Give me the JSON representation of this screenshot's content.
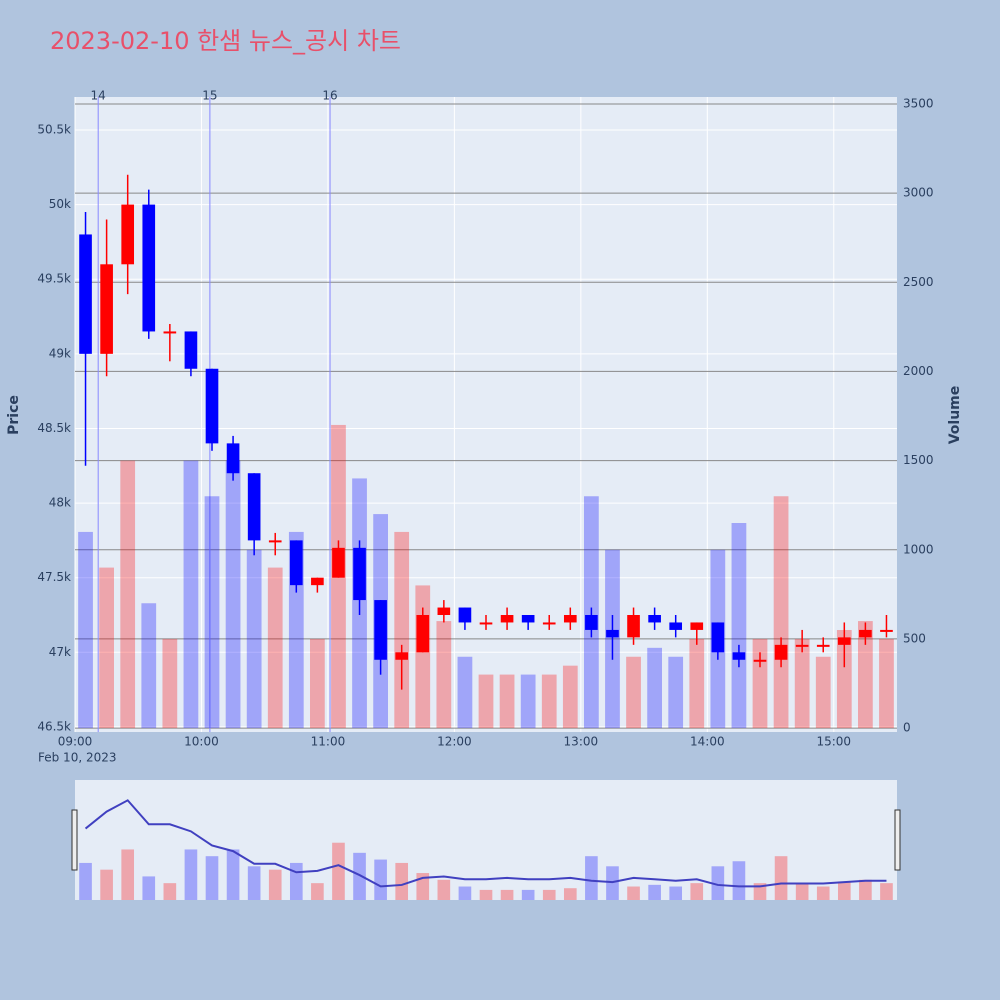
{
  "chart_data": {
    "type": "candlestick",
    "title": "2023-02-10 한샘 뉴스_공시 차트",
    "y_label": "Price",
    "y2_label": "Volume",
    "x_date_label": "Feb 10, 2023",
    "up_color": "#ff0000",
    "down_color": "#0000ff",
    "x": [
      "09:00",
      "09:10",
      "09:20",
      "09:30",
      "09:40",
      "09:50",
      "10:00",
      "10:10",
      "10:20",
      "10:30",
      "10:40",
      "10:50",
      "11:00",
      "11:10",
      "11:20",
      "11:30",
      "11:40",
      "11:50",
      "12:00",
      "12:10",
      "12:20",
      "12:30",
      "12:40",
      "12:50",
      "13:00",
      "13:10",
      "13:20",
      "13:30",
      "13:40",
      "13:50",
      "14:00",
      "14:10",
      "14:20",
      "14:30",
      "14:40",
      "14:50",
      "15:00",
      "15:10",
      "15:20"
    ],
    "open": [
      49800,
      49000,
      49600,
      50000,
      49150,
      49150,
      48900,
      48400,
      48200,
      47750,
      47750,
      47450,
      47500,
      47700,
      47350,
      46950,
      47000,
      47250,
      47300,
      47200,
      47200,
      47250,
      47200,
      47200,
      47250,
      47150,
      47100,
      47250,
      47200,
      47150,
      47200,
      47000,
      46950,
      46950,
      47050,
      47050,
      47050,
      47100,
      47150
    ],
    "high": [
      49950,
      49900,
      50200,
      50100,
      49200,
      49150,
      48900,
      48450,
      48200,
      47800,
      47750,
      47500,
      47750,
      47750,
      47350,
      47050,
      47300,
      47350,
      47300,
      47250,
      47300,
      47250,
      47250,
      47300,
      47300,
      47250,
      47300,
      47300,
      47250,
      47200,
      47200,
      47050,
      47000,
      47100,
      47150,
      47100,
      47200,
      47200,
      47250
    ],
    "low": [
      48250,
      48850,
      49400,
      49100,
      48950,
      48850,
      48350,
      48150,
      47650,
      47650,
      47400,
      47400,
      47500,
      47250,
      46850,
      46750,
      47000,
      47200,
      47150,
      47150,
      47150,
      47150,
      47150,
      47150,
      47100,
      46950,
      47050,
      47150,
      47100,
      47050,
      46950,
      46900,
      46900,
      46900,
      47000,
      47000,
      46900,
      47050,
      47100
    ],
    "close": [
      49000,
      49600,
      50000,
      49150,
      49150,
      48900,
      48400,
      48200,
      47750,
      47750,
      47450,
      47500,
      47700,
      47350,
      46950,
      47000,
      47250,
      47300,
      47200,
      47200,
      47250,
      47200,
      47200,
      47250,
      47150,
      47100,
      47250,
      47200,
      47150,
      47200,
      47000,
      46950,
      46950,
      47050,
      47050,
      47050,
      47100,
      47150,
      47150
    ],
    "volume": [
      1100,
      900,
      1500,
      700,
      500,
      1500,
      1300,
      1500,
      1000,
      900,
      1100,
      500,
      1700,
      1400,
      1200,
      1100,
      800,
      600,
      400,
      300,
      300,
      300,
      300,
      350,
      1300,
      1000,
      400,
      450,
      400,
      500,
      1000,
      1150,
      500,
      1300,
      500,
      400,
      550,
      600,
      500
    ],
    "xlim": [
      "09:00",
      "15:30"
    ],
    "xticks": [
      "09:00",
      "10:00",
      "11:00",
      "12:00",
      "13:00",
      "14:00",
      "15:00"
    ],
    "ylim": [
      46466,
      50721
    ],
    "yticks": [
      {
        "value": 46500,
        "label": "46.5k"
      },
      {
        "value": 47000,
        "label": "47k"
      },
      {
        "value": 47500,
        "label": "47.5k"
      },
      {
        "value": 48000,
        "label": "48k"
      },
      {
        "value": 48500,
        "label": "48.5k"
      },
      {
        "value": 49000,
        "label": "49k"
      },
      {
        "value": 49500,
        "label": "49.5k"
      },
      {
        "value": 50000,
        "label": "50k"
      },
      {
        "value": 50500,
        "label": "50.5k"
      }
    ],
    "y2lim": [
      -22,
      3539
    ],
    "y2ticks": [
      0,
      500,
      1000,
      1500,
      2000,
      2500,
      3000,
      3500
    ],
    "events": [
      {
        "x": "09:11",
        "label": "14"
      },
      {
        "x": "10:04",
        "label": "15"
      },
      {
        "x": "11:01",
        "label": "16"
      }
    ]
  }
}
